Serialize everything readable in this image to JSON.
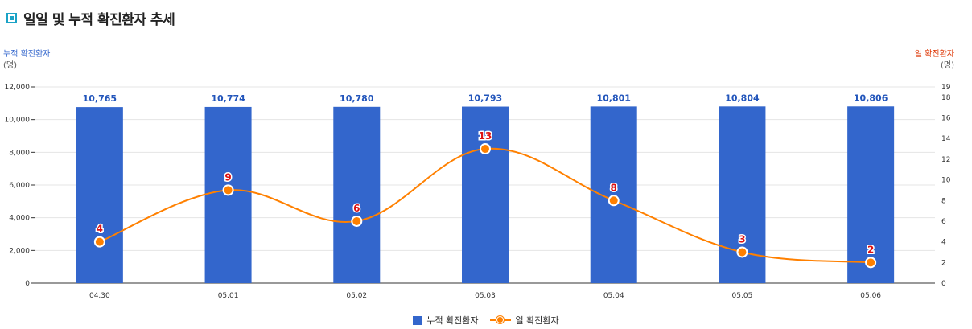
{
  "header": {
    "title": "일일 및 누적 확진환자 추세"
  },
  "chart_data": {
    "type": "bar",
    "categories": [
      "04.30",
      "05.01",
      "05.02",
      "05.03",
      "05.04",
      "05.05",
      "05.06"
    ],
    "series": [
      {
        "name": "누적 확진환자",
        "type": "bar",
        "axis": "left",
        "color": "#3366cc",
        "values": [
          10765,
          10774,
          10780,
          10793,
          10801,
          10804,
          10806
        ],
        "labels": [
          "10,765",
          "10,774",
          "10,780",
          "10,793",
          "10,801",
          "10,804",
          "10,806"
        ]
      },
      {
        "name": "일 확진환자",
        "type": "line",
        "axis": "right",
        "color": "#ff8000",
        "values": [
          4,
          9,
          6,
          13,
          8,
          3,
          2
        ]
      }
    ],
    "left_axis": {
      "label": "누적 확진환자",
      "unit": "(명)",
      "min": 0,
      "max": 12000,
      "ticks": [
        "0",
        "2,000",
        "4,000",
        "6,000",
        "8,000",
        "10,000",
        "12,000"
      ]
    },
    "right_axis": {
      "label": "일 확진환자",
      "unit": "(명)",
      "min": 0,
      "max": 19,
      "ticks": [
        "0",
        "2",
        "4",
        "6",
        "8",
        "10",
        "12",
        "14",
        "16",
        "18",
        "19"
      ]
    },
    "grid": "horizontal",
    "legend_position": "bottom"
  }
}
